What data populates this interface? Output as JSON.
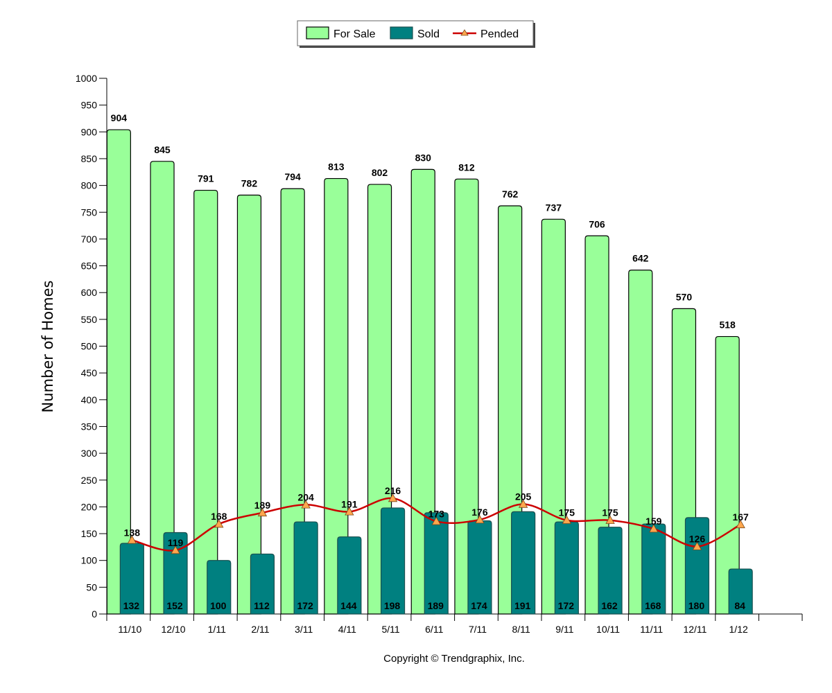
{
  "chart_data": {
    "type": "bar",
    "categories": [
      "11/10",
      "12/10",
      "1/11",
      "2/11",
      "3/11",
      "4/11",
      "5/11",
      "6/11",
      "7/11",
      "8/11",
      "9/11",
      "10/11",
      "11/11",
      "12/11",
      "1/12"
    ],
    "series": [
      {
        "name": "For Sale",
        "type": "bar",
        "color": "#99ff99",
        "values": [
          904,
          845,
          791,
          782,
          794,
          813,
          802,
          830,
          812,
          762,
          737,
          706,
          642,
          570,
          518
        ]
      },
      {
        "name": "Sold",
        "type": "bar",
        "color": "#008080",
        "values": [
          132,
          152,
          100,
          112,
          172,
          144,
          198,
          189,
          174,
          191,
          172,
          162,
          168,
          180,
          84
        ]
      },
      {
        "name": "Pended",
        "type": "line",
        "color": "#cc0000",
        "marker_color": "#ffa64d",
        "values": [
          138,
          119,
          168,
          189,
          204,
          191,
          216,
          173,
          176,
          205,
          175,
          175,
          159,
          126,
          167
        ]
      }
    ],
    "ylabel": "Number of Homes",
    "xlabel": "",
    "ylim": [
      0,
      1000
    ],
    "ytick_step": 50,
    "legend_position": "top-center",
    "grid": false
  },
  "footer": {
    "copyright": "Copyright © Trendgraphix, Inc."
  }
}
